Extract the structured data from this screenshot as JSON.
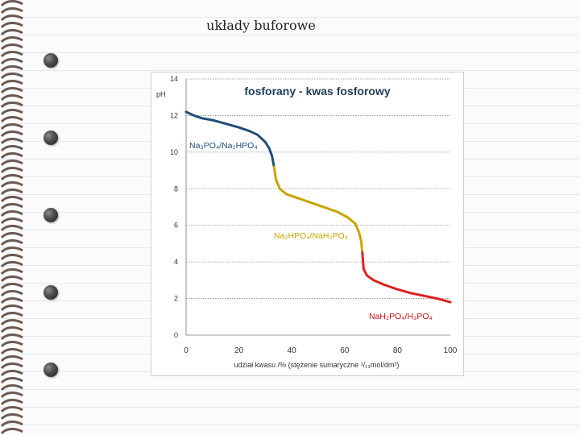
{
  "slide": {
    "title": "układy buforowe"
  },
  "chart_data": {
    "type": "line",
    "title": "fosforany - kwas fosforowy",
    "xlabel": "udział kwasu /% (stężenie sumaryczne ¹/₁₃mol/dm³)",
    "ylabel": "pH",
    "xlim": [
      0,
      100
    ],
    "ylim": [
      0,
      14
    ],
    "x_ticks": [
      0,
      20,
      40,
      60,
      80,
      100
    ],
    "y_ticks": [
      0,
      2,
      4,
      6,
      8,
      10,
      12,
      14
    ],
    "grid": "horizontal dotted",
    "series": [
      {
        "name": "Na₃PO₄/Na₂HPO₄",
        "color": "#1f4e79",
        "x": [
          0,
          3,
          6,
          10,
          15,
          20,
          24,
          27,
          30,
          31.5,
          32.5,
          33.3
        ],
        "y": [
          12.2,
          12.0,
          11.85,
          11.75,
          11.55,
          11.35,
          11.15,
          10.95,
          10.55,
          10.2,
          9.8,
          9.2
        ]
      },
      {
        "name": "Na₂HPO₄/NaH₂PO₄",
        "color": "#c9a400",
        "x": [
          33.3,
          34,
          35.5,
          38,
          42,
          47,
          52,
          57,
          61,
          64,
          65.5,
          66.3,
          66.7
        ],
        "y": [
          9.2,
          8.5,
          8.0,
          7.7,
          7.5,
          7.25,
          7.0,
          6.75,
          6.45,
          6.1,
          5.6,
          5.1,
          4.5
        ]
      },
      {
        "name": "NaH₂PO₄/H₃PO₄",
        "color": "#e02020",
        "x": [
          66.7,
          67.2,
          68.5,
          71,
          75,
          80,
          85,
          90,
          95,
          100
        ],
        "y": [
          4.5,
          3.6,
          3.25,
          3.0,
          2.75,
          2.5,
          2.3,
          2.15,
          2.0,
          1.8
        ]
      }
    ]
  }
}
